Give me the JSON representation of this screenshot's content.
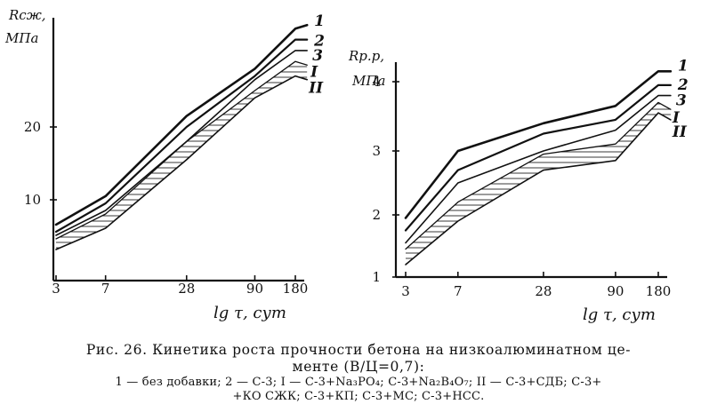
{
  "chart_data": [
    {
      "type": "line",
      "ylabel": [
        "Rсж,",
        "МПа"
      ],
      "xlabel": "lg τ, сут",
      "x_scale": "log",
      "xticks": [
        {
          "value": 3,
          "label": "3"
        },
        {
          "value": 7,
          "label": "7"
        },
        {
          "value": 28,
          "label": "28"
        },
        {
          "value": 90,
          "label": "90"
        },
        {
          "value": 180,
          "label": "180"
        }
      ],
      "yticks": [
        10,
        20
      ],
      "ylim": [
        0,
        36
      ],
      "series": [
        {
          "name": "1",
          "x": [
            3,
            7,
            28,
            90,
            180,
            220
          ],
          "y": [
            6.5,
            10.5,
            21.5,
            28,
            33.5,
            34
          ]
        },
        {
          "name": "2",
          "x": [
            3,
            7,
            28,
            90,
            180,
            220
          ],
          "y": [
            5.5,
            9.5,
            20,
            27,
            32,
            32
          ]
        },
        {
          "name": "3",
          "x": [
            3,
            7,
            28,
            90,
            180,
            220
          ],
          "y": [
            5,
            8.5,
            18,
            26.5,
            30.5,
            30.5
          ]
        },
        {
          "name": "I",
          "x": [
            3,
            7,
            28,
            90,
            180,
            220
          ],
          "y": [
            4.5,
            8,
            18,
            25,
            29,
            28.5
          ]
        },
        {
          "name": "II",
          "x": [
            3,
            7,
            28,
            90,
            180,
            220
          ],
          "y": [
            3,
            6,
            15.5,
            24,
            27,
            26.5
          ]
        }
      ],
      "shaded_band_between": [
        "I",
        "II"
      ]
    },
    {
      "type": "line",
      "ylabel": [
        "Rр.р,",
        "МПа"
      ],
      "xlabel": "lg τ, сут",
      "x_scale": "log",
      "xticks": [
        {
          "value": 3,
          "label": "3"
        },
        {
          "value": 7,
          "label": "7"
        },
        {
          "value": 28,
          "label": "28"
        },
        {
          "value": 90,
          "label": "90"
        },
        {
          "value": 180,
          "label": "180"
        }
      ],
      "yticks": [
        1,
        2,
        3,
        4
      ],
      "ylim": [
        1,
        4.4
      ],
      "series": [
        {
          "name": "1",
          "x": [
            3,
            7,
            28,
            90,
            180,
            220
          ],
          "y": [
            1.95,
            3.0,
            3.4,
            3.65,
            4.15,
            4.15
          ]
        },
        {
          "name": "2",
          "x": [
            3,
            7,
            28,
            90,
            180,
            220
          ],
          "y": [
            1.75,
            2.7,
            3.25,
            3.45,
            3.95,
            3.95
          ]
        },
        {
          "name": "3",
          "x": [
            3,
            7,
            28,
            90,
            180,
            220
          ],
          "y": [
            1.55,
            2.5,
            3.0,
            3.3,
            3.8,
            3.8
          ]
        },
        {
          "name": "I",
          "x": [
            3,
            7,
            28,
            90,
            180,
            220
          ],
          "y": [
            1.45,
            2.2,
            2.95,
            3.1,
            3.7,
            3.6
          ]
        },
        {
          "name": "II",
          "x": [
            3,
            7,
            28,
            90,
            180,
            220
          ],
          "y": [
            1.2,
            1.9,
            2.7,
            2.85,
            3.55,
            3.45
          ]
        }
      ],
      "shaded_band_between": [
        "I",
        "II"
      ]
    }
  ],
  "caption": {
    "line1": "Рис. 26. Кинетика роста прочности бетона на низкоалюминатном це-",
    "line2": "менте (В/Ц=0,7):",
    "legend1": "1 — без добавки; 2 — С-3; I — С-3+Na₃PO₄; С-3+Na₂B₄O₇; II — С-3+СДБ; С-3+",
    "legend2": "+КО СЖК; С-3+КП; С-3+МС; С-3+НСС."
  }
}
